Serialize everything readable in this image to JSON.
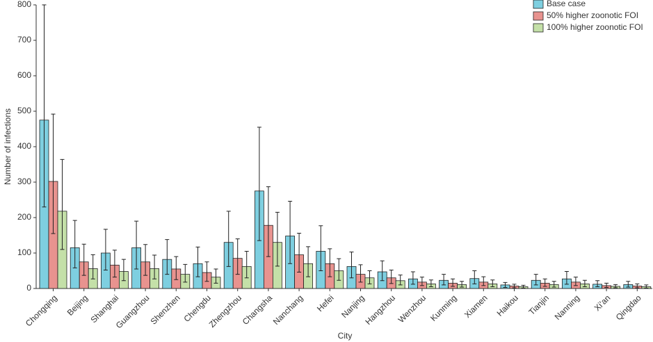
{
  "chart_data": {
    "type": "bar",
    "x_label": "City",
    "y_label": "Number of infections",
    "categories": [
      "Chongqing",
      "Beijing",
      "Shanghai",
      "Guangzhou",
      "Shenzhen",
      "Chengdu",
      "Zhengzhou",
      "Changsha",
      "Nanchang",
      "Hefei",
      "Nanjing",
      "Hangzhou",
      "Wenzhou",
      "Kunming",
      "Xiamen",
      "Haikou",
      "Tianjin",
      "Nanning",
      "Xi’an",
      "Qingdao"
    ],
    "series": [
      {
        "name": "Base case",
        "color": "#7ecfe0",
        "values": [
          475,
          115,
          100,
          115,
          82,
          70,
          130,
          275,
          148,
          105,
          62,
          47,
          27,
          23,
          28,
          10,
          23,
          27,
          12,
          11
        ],
        "lower": [
          230,
          58,
          52,
          55,
          40,
          33,
          62,
          135,
          70,
          50,
          30,
          22,
          12,
          10,
          13,
          3,
          10,
          12,
          5,
          4
        ],
        "upper": [
          800,
          192,
          167,
          190,
          138,
          117,
          218,
          455,
          246,
          177,
          103,
          78,
          47,
          40,
          50,
          17,
          40,
          48,
          22,
          20
        ]
      },
      {
        "name": "50% higher zoonotic FOI",
        "color": "#e8938f",
        "values": [
          302,
          75,
          66,
          75,
          55,
          45,
          85,
          178,
          95,
          70,
          40,
          30,
          18,
          15,
          18,
          7,
          15,
          18,
          8,
          7
        ],
        "lower": [
          155,
          37,
          32,
          37,
          25,
          20,
          40,
          90,
          46,
          33,
          18,
          14,
          8,
          6,
          8,
          2,
          6,
          8,
          3,
          2
        ],
        "upper": [
          492,
          125,
          108,
          124,
          90,
          75,
          140,
          287,
          156,
          112,
          67,
          52,
          32,
          27,
          33,
          12,
          27,
          32,
          15,
          13
        ]
      },
      {
        "name": "100% higher zoonotic FOI",
        "color": "#c4e0a8",
        "values": [
          218,
          56,
          48,
          56,
          40,
          32,
          62,
          130,
          70,
          50,
          30,
          22,
          13,
          11,
          13,
          5,
          11,
          13,
          6,
          5
        ],
        "lower": [
          110,
          27,
          22,
          27,
          18,
          15,
          30,
          63,
          33,
          23,
          13,
          10,
          5,
          4,
          5,
          1,
          4,
          5,
          2,
          1
        ],
        "upper": [
          364,
          95,
          82,
          94,
          68,
          55,
          105,
          215,
          118,
          84,
          50,
          38,
          24,
          20,
          24,
          9,
          20,
          23,
          11,
          10
        ]
      }
    ],
    "ylim": [
      0,
      800
    ],
    "yticks": [
      0,
      100,
      200,
      300,
      400,
      500,
      600,
      700,
      800
    ],
    "legend": "upper right"
  }
}
